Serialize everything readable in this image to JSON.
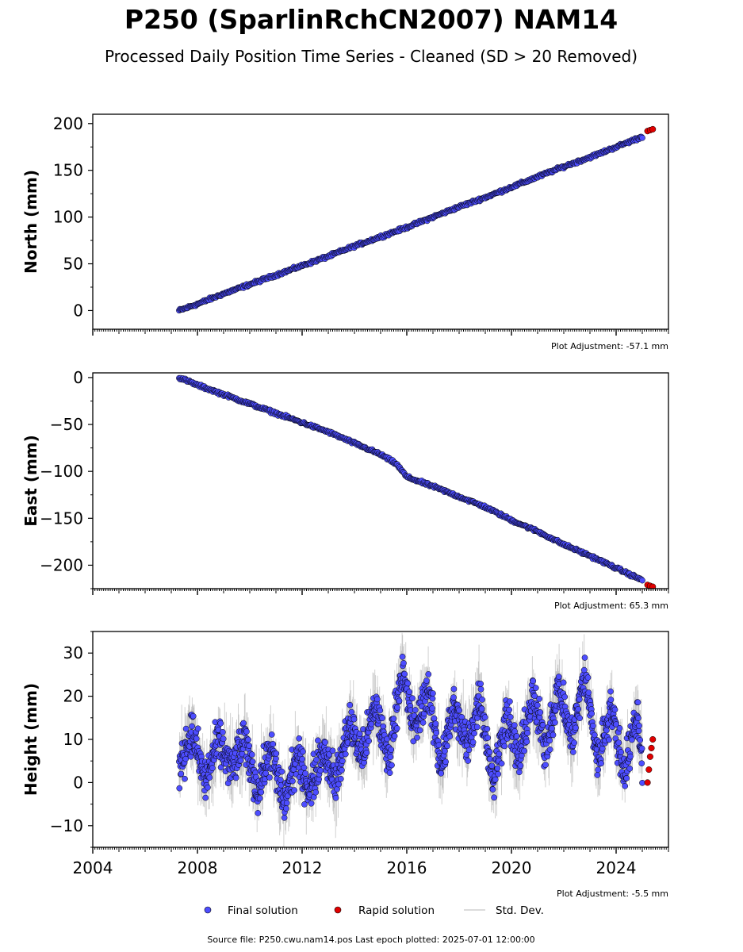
{
  "title": "P250 (SparlinRchCN2007) NAM14",
  "subtitle": "Processed Daily Position Time Series - Cleaned (SD > 20 Removed)",
  "footer": "Source file: P250.cwu.nam14.pos  Last epoch plotted: 2025-07-01 12:00:00",
  "legend": {
    "final": "Final solution",
    "rapid": "Rapid solution",
    "std": "Std. Dev."
  },
  "colors": {
    "final": "#4d4dff",
    "rapid": "#e00000",
    "std": "#9a9a9a",
    "edge": "#000000"
  },
  "chart_data": [
    {
      "type": "scatter",
      "ylabel": "North (mm)",
      "note": "Plot Adjustment: -57.1 mm",
      "xlim": [
        2004,
        2026
      ],
      "ylim": [
        -20,
        210
      ],
      "yticks": [
        0,
        50,
        100,
        150,
        200
      ],
      "xticklabels": [],
      "series": [
        {
          "name": "Final solution",
          "x": [
            2007.3,
            2008.0,
            2009.0,
            2010.0,
            2011.0,
            2012.0,
            2013.0,
            2014.0,
            2015.0,
            2016.0,
            2017.0,
            2018.0,
            2019.0,
            2020.0,
            2021.0,
            2022.0,
            2023.0,
            2024.0,
            2025.0
          ],
          "y": [
            0,
            7,
            18,
            28,
            38,
            48,
            58,
            69,
            79,
            89,
            100,
            111,
            121,
            132,
            143,
            154,
            164,
            175,
            186
          ]
        },
        {
          "name": "Rapid solution",
          "x": [
            2025.2,
            2025.3,
            2025.4
          ],
          "y": [
            192,
            193,
            194
          ]
        }
      ]
    },
    {
      "type": "scatter",
      "ylabel": "East (mm)",
      "note": "Plot Adjustment: 65.3 mm",
      "xlim": [
        2004,
        2026
      ],
      "ylim": [
        -225,
        5
      ],
      "yticks": [
        0,
        -50,
        -100,
        -150,
        -200
      ],
      "xticklabels": [],
      "series": [
        {
          "name": "Final solution",
          "x": [
            2007.3,
            2008.0,
            2009.0,
            2010.0,
            2011.0,
            2012.0,
            2013.0,
            2014.0,
            2015.0,
            2015.6,
            2016.0,
            2017.0,
            2018.0,
            2019.0,
            2020.0,
            2021.0,
            2022.0,
            2023.0,
            2024.0,
            2025.0
          ],
          "y": [
            0,
            -8,
            -18,
            -28,
            -38,
            -48,
            -58,
            -70,
            -82,
            -92,
            -106,
            -116,
            -127,
            -138,
            -152,
            -164,
            -178,
            -190,
            -203,
            -216
          ]
        },
        {
          "name": "Rapid solution",
          "x": [
            2025.2,
            2025.3,
            2025.4
          ],
          "y": [
            -221,
            -222,
            -223
          ]
        }
      ]
    },
    {
      "type": "scatter",
      "ylabel": "Height (mm)",
      "note": "Plot Adjustment: -5.5 mm",
      "xlim": [
        2004,
        2026
      ],
      "ylim": [
        -15,
        35
      ],
      "yticks": [
        -10,
        0,
        10,
        20,
        30
      ],
      "xticklabels": [
        "2004",
        "2008",
        "2012",
        "2016",
        "2020",
        "2024"
      ],
      "series": [
        {
          "name": "Final solution",
          "x": [
            2007.3,
            2007.8,
            2008.3,
            2008.8,
            2009.3,
            2009.8,
            2010.3,
            2010.8,
            2011.3,
            2011.8,
            2012.3,
            2012.8,
            2013.3,
            2013.8,
            2014.3,
            2014.8,
            2015.3,
            2015.8,
            2016.3,
            2016.8,
            2017.3,
            2017.8,
            2018.3,
            2018.8,
            2019.3,
            2019.8,
            2020.3,
            2020.8,
            2021.3,
            2021.8,
            2022.3,
            2022.8,
            2023.3,
            2023.8,
            2024.3,
            2024.8,
            2025.0
          ],
          "y": [
            4,
            12,
            0,
            10,
            3,
            10,
            -2,
            8,
            -5,
            6,
            -2,
            8,
            0,
            14,
            6,
            18,
            5,
            26,
            12,
            22,
            4,
            18,
            8,
            20,
            0,
            16,
            5,
            20,
            8,
            22,
            10,
            25,
            5,
            18,
            2,
            16,
            5
          ]
        },
        {
          "name": "Rapid solution",
          "x": [
            2025.2,
            2025.25,
            2025.3,
            2025.35,
            2025.4
          ],
          "y": [
            0,
            3,
            6,
            8,
            10
          ]
        }
      ]
    }
  ]
}
